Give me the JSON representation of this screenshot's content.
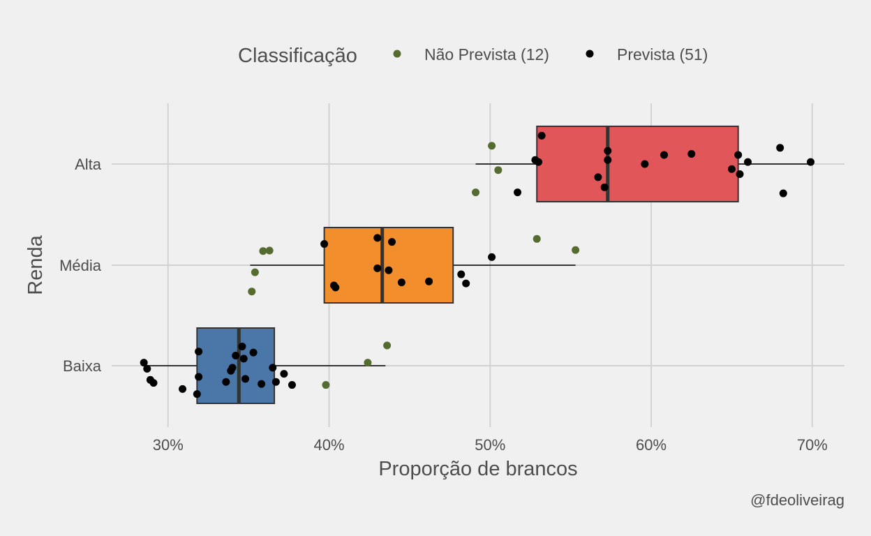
{
  "chart_data": {
    "type": "boxplot",
    "orientation": "horizontal",
    "xlabel": "Proporção de brancos",
    "ylabel": "Renda",
    "xlim": [
      26.5,
      72
    ],
    "x_ticks": [
      30,
      40,
      50,
      60,
      70
    ],
    "x_tick_labels": [
      "30%",
      "40%",
      "50%",
      "60%",
      "70%"
    ],
    "categories": [
      "Baixa",
      "Média",
      "Alta"
    ],
    "legend": {
      "title": "Classificação",
      "position": "top",
      "entries": [
        {
          "label": "Não Prevista (12)",
          "color": "#556b2f"
        },
        {
          "label": "Prevista (51)",
          "color": "#000000"
        }
      ]
    },
    "caption": "@fdeoliveirag",
    "grid": true,
    "boxes": [
      {
        "category": "Baixa",
        "color": "#4a76a8",
        "whisker_low": 28.6,
        "q1": 31.8,
        "median": 34.4,
        "q3": 36.6,
        "whisker_high": 43.5
      },
      {
        "category": "Média",
        "color": "#f28e2b",
        "whisker_low": 35.1,
        "q1": 39.7,
        "median": 43.3,
        "q3": 47.7,
        "whisker_high": 55.3
      },
      {
        "category": "Alta",
        "color": "#e15759",
        "whisker_low": 49.1,
        "q1": 52.9,
        "median": 57.3,
        "q3": 65.4,
        "whisker_high": 69.9
      }
    ],
    "points": {
      "Não Prevista (12)": [
        {
          "category": "Baixa",
          "x": 43.6,
          "jitter": 0.2
        },
        {
          "category": "Baixa",
          "x": 42.4,
          "jitter": 0.03
        },
        {
          "category": "Baixa",
          "x": 39.8,
          "jitter": -0.19
        },
        {
          "category": "Média",
          "x": 35.9,
          "jitter": 0.14
        },
        {
          "category": "Média",
          "x": 36.3,
          "jitter": 0.145
        },
        {
          "category": "Média",
          "x": 35.4,
          "jitter": -0.07
        },
        {
          "category": "Média",
          "x": 35.2,
          "jitter": -0.26
        },
        {
          "category": "Média",
          "x": 52.9,
          "jitter": 0.26
        },
        {
          "category": "Média",
          "x": 55.3,
          "jitter": 0.15
        },
        {
          "category": "Alta",
          "x": 50.1,
          "jitter": 0.18
        },
        {
          "category": "Alta",
          "x": 50.5,
          "jitter": -0.06
        },
        {
          "category": "Alta",
          "x": 49.1,
          "jitter": -0.28
        }
      ],
      "Prevista (51)": [
        {
          "category": "Baixa",
          "x": 28.5,
          "jitter": 0.03
        },
        {
          "category": "Baixa",
          "x": 28.7,
          "jitter": -0.03
        },
        {
          "category": "Baixa",
          "x": 28.9,
          "jitter": -0.14
        },
        {
          "category": "Baixa",
          "x": 29.1,
          "jitter": -0.17
        },
        {
          "category": "Baixa",
          "x": 30.9,
          "jitter": -0.23
        },
        {
          "category": "Baixa",
          "x": 31.8,
          "jitter": -0.28
        },
        {
          "category": "Baixa",
          "x": 31.9,
          "jitter": 0.14
        },
        {
          "category": "Baixa",
          "x": 31.9,
          "jitter": -0.11
        },
        {
          "category": "Baixa",
          "x": 33.6,
          "jitter": -0.16
        },
        {
          "category": "Baixa",
          "x": 33.9,
          "jitter": -0.05
        },
        {
          "category": "Baixa",
          "x": 34.0,
          "jitter": -0.02
        },
        {
          "category": "Baixa",
          "x": 34.2,
          "jitter": 0.1
        },
        {
          "category": "Baixa",
          "x": 34.6,
          "jitter": 0.19
        },
        {
          "category": "Baixa",
          "x": 34.7,
          "jitter": 0.07
        },
        {
          "category": "Baixa",
          "x": 34.8,
          "jitter": -0.13
        },
        {
          "category": "Baixa",
          "x": 35.3,
          "jitter": 0.13
        },
        {
          "category": "Baixa",
          "x": 35.8,
          "jitter": -0.18
        },
        {
          "category": "Baixa",
          "x": 36.5,
          "jitter": -0.02
        },
        {
          "category": "Baixa",
          "x": 36.7,
          "jitter": -0.16
        },
        {
          "category": "Baixa",
          "x": 37.2,
          "jitter": -0.08
        },
        {
          "category": "Baixa",
          "x": 37.7,
          "jitter": -0.19
        },
        {
          "category": "Média",
          "x": 39.7,
          "jitter": 0.21
        },
        {
          "category": "Média",
          "x": 40.3,
          "jitter": -0.2
        },
        {
          "category": "Média",
          "x": 40.4,
          "jitter": -0.22
        },
        {
          "category": "Média",
          "x": 43.0,
          "jitter": 0.27
        },
        {
          "category": "Média",
          "x": 43.0,
          "jitter": -0.03
        },
        {
          "category": "Média",
          "x": 43.7,
          "jitter": -0.05
        },
        {
          "category": "Média",
          "x": 43.9,
          "jitter": 0.23
        },
        {
          "category": "Média",
          "x": 44.5,
          "jitter": -0.17
        },
        {
          "category": "Média",
          "x": 46.2,
          "jitter": -0.16
        },
        {
          "category": "Média",
          "x": 48.2,
          "jitter": -0.09
        },
        {
          "category": "Média",
          "x": 48.5,
          "jitter": -0.18
        },
        {
          "category": "Média",
          "x": 50.1,
          "jitter": 0.08
        },
        {
          "category": "Alta",
          "x": 51.7,
          "jitter": -0.28
        },
        {
          "category": "Alta",
          "x": 52.8,
          "jitter": 0.04
        },
        {
          "category": "Alta",
          "x": 53.0,
          "jitter": 0.02
        },
        {
          "category": "Alta",
          "x": 53.2,
          "jitter": 0.28
        },
        {
          "category": "Alta",
          "x": 56.7,
          "jitter": -0.13
        },
        {
          "category": "Alta",
          "x": 57.1,
          "jitter": -0.23
        },
        {
          "category": "Alta",
          "x": 57.3,
          "jitter": 0.13
        },
        {
          "category": "Alta",
          "x": 57.3,
          "jitter": 0.04
        },
        {
          "category": "Alta",
          "x": 59.6,
          "jitter": 0.0
        },
        {
          "category": "Alta",
          "x": 60.8,
          "jitter": 0.09
        },
        {
          "category": "Alta",
          "x": 62.5,
          "jitter": 0.1
        },
        {
          "category": "Alta",
          "x": 65.0,
          "jitter": -0.05
        },
        {
          "category": "Alta",
          "x": 65.4,
          "jitter": 0.09
        },
        {
          "category": "Alta",
          "x": 65.5,
          "jitter": -0.1
        },
        {
          "category": "Alta",
          "x": 66.0,
          "jitter": 0.02
        },
        {
          "category": "Alta",
          "x": 68.0,
          "jitter": 0.16
        },
        {
          "category": "Alta",
          "x": 68.2,
          "jitter": -0.29
        },
        {
          "category": "Alta",
          "x": 69.9,
          "jitter": 0.02
        }
      ]
    }
  }
}
